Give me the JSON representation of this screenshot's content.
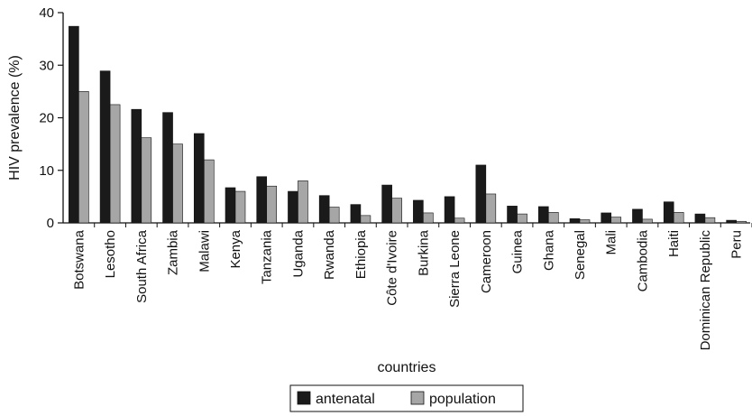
{
  "chart_data": {
    "type": "bar",
    "xlabel": "countries",
    "ylabel": "HIV prevalence (%)",
    "ylim": [
      0,
      40
    ],
    "yticks": [
      0,
      10,
      20,
      30,
      40
    ],
    "grid": false,
    "legend_position": "bottom-center",
    "categories": [
      "Botswana",
      "Lesotho",
      "South Africa",
      "Zambia",
      "Malawi",
      "Kenya",
      "Tanzania",
      "Uganda",
      "Rwanda",
      "Ethiopia",
      "Côte d'Ivoire",
      "Burkina",
      "Sierra Leone",
      "Cameroon",
      "Guinea",
      "Ghana",
      "Senegal",
      "Mali",
      "Cambodia",
      "Haiti",
      "Dominican Republic",
      "Peru"
    ],
    "series": [
      {
        "name": "antenatal",
        "color": "#1a1a1a",
        "values": [
          37.4,
          28.9,
          21.6,
          21.0,
          17.0,
          6.7,
          8.8,
          6.0,
          5.2,
          3.5,
          7.2,
          4.3,
          5.0,
          11.0,
          3.2,
          3.1,
          0.8,
          1.9,
          2.6,
          4.0,
          1.7,
          0.5
        ]
      },
      {
        "name": "population",
        "color": "#a6a6a6",
        "values": [
          25.0,
          22.5,
          16.2,
          15.0,
          12.0,
          6.0,
          7.0,
          8.0,
          3.0,
          1.4,
          4.7,
          1.9,
          0.9,
          5.5,
          1.7,
          2.0,
          0.6,
          1.1,
          0.7,
          2.0,
          1.0,
          0.3
        ]
      }
    ]
  }
}
